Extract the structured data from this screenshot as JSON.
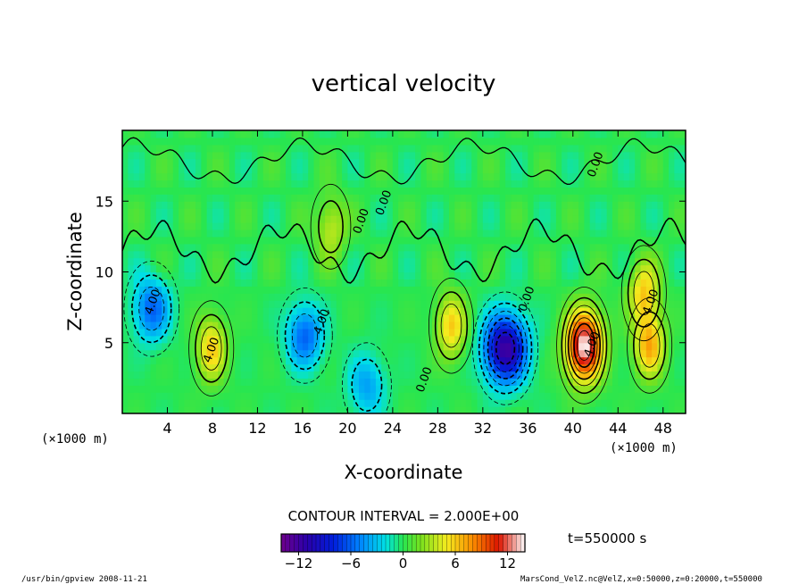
{
  "chart_data": {
    "type": "heatmap",
    "title": "vertical velocity",
    "xlabel": "X-coordinate",
    "ylabel": "Z-coordinate",
    "x_unit_label": "(×1000 m)",
    "x_unit_label_right": "(×1000 m)",
    "xlim": [
      0,
      50
    ],
    "ylim": [
      0,
      20
    ],
    "x_ticks": [
      4,
      8,
      12,
      16,
      20,
      24,
      28,
      32,
      36,
      40,
      44,
      48
    ],
    "y_ticks": [
      5,
      10,
      15
    ],
    "contour_interval_text": "CONTOUR INTERVAL = 2.000E+00",
    "colorbar": {
      "range": [
        -14,
        14
      ],
      "ticks": [
        -12,
        -6,
        0,
        6,
        12
      ],
      "tick_labels": [
        "−12",
        "−6",
        "0",
        "6",
        "12"
      ]
    },
    "contour_labels": [
      {
        "text": "4.00",
        "x": 8.2,
        "z": 4.4
      },
      {
        "text": "4.00",
        "x": 18.0,
        "z": 6.4
      },
      {
        "text": "4.00",
        "x": 3.0,
        "z": 7.8
      },
      {
        "text": "4.00",
        "x": 42.0,
        "z": 4.8
      },
      {
        "text": "4.00",
        "x": 47.2,
        "z": 7.8
      },
      {
        "text": "0.00",
        "x": 21.5,
        "z": 13.5
      },
      {
        "text": "0.00",
        "x": 23.5,
        "z": 14.8
      },
      {
        "text": "0.00",
        "x": 36.2,
        "z": 8.0
      },
      {
        "text": "0.00",
        "x": 42.3,
        "z": 17.5
      },
      {
        "text": "0.00",
        "x": 27.1,
        "z": 2.3
      }
    ],
    "features": [
      {
        "kind": "updraft",
        "x": 41.0,
        "z": 4.8,
        "peak": 14
      },
      {
        "kind": "updraft",
        "x": 46.8,
        "z": 4.8,
        "peak": 7
      },
      {
        "kind": "updraft",
        "x": 46.3,
        "z": 8.5,
        "peak": 6
      },
      {
        "kind": "updraft",
        "x": 7.9,
        "z": 4.6,
        "peak": 6
      },
      {
        "kind": "updraft",
        "x": 29.2,
        "z": 6.2,
        "peak": 6
      },
      {
        "kind": "updraft",
        "x": 18.5,
        "z": 13.2,
        "peak": 4
      },
      {
        "kind": "downdraft",
        "x": 34.0,
        "z": 4.6,
        "peak": -12
      },
      {
        "kind": "downdraft",
        "x": 16.2,
        "z": 5.5,
        "peak": -6
      },
      {
        "kind": "downdraft",
        "x": 2.6,
        "z": 7.4,
        "peak": -6
      },
      {
        "kind": "downdraft",
        "x": 21.7,
        "z": 2.0,
        "peak": -4
      }
    ],
    "time_label": "t=550000 s",
    "footer_left": "/usr/bin/gpview  2008-11-21",
    "footer_right": "MarsCond_VelZ.nc@VelZ,x=0:50000,z=0:20000,t=550000"
  }
}
